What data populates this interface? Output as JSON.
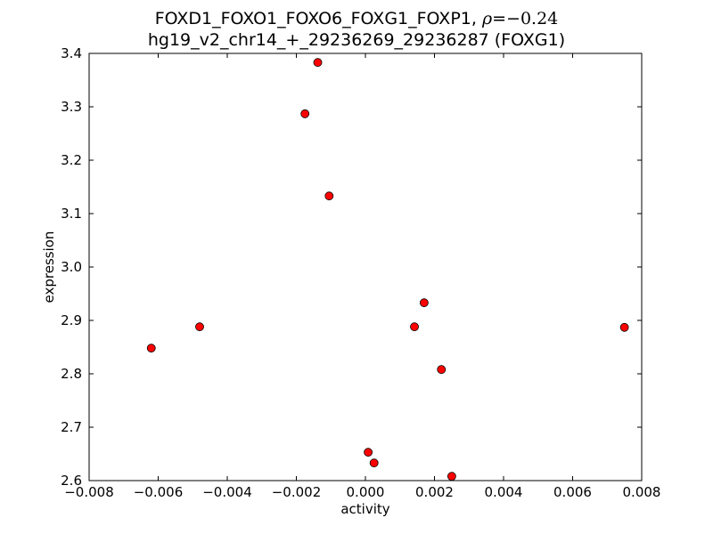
{
  "chart_data": {
    "type": "scatter",
    "title": "FOXD1_FOXO1_FOXO6_FOXG1_FOXP1,",
    "title_rho_symbol": "ρ",
    "title_rho_value": "=−0.24",
    "subtitle": "hg19_v2_chr14_+_29236269_29236287 (FOXG1)",
    "xlabel": "activity",
    "ylabel": "expression",
    "xlim": [
      -0.008,
      0.008
    ],
    "ylim": [
      2.6,
      3.4
    ],
    "xticks": [
      -0.008,
      -0.006,
      -0.004,
      -0.002,
      0.0,
      0.002,
      0.004,
      0.006,
      0.008
    ],
    "xtick_labels": [
      "−0.008",
      "−0.006",
      "−0.004",
      "−0.002",
      "0.000",
      "0.002",
      "0.004",
      "0.006",
      "0.008"
    ],
    "yticks": [
      2.6,
      2.7,
      2.8,
      2.9,
      3.0,
      3.1,
      3.2,
      3.3,
      3.4
    ],
    "ytick_labels": [
      "2.6",
      "2.7",
      "2.8",
      "2.9",
      "3.0",
      "3.1",
      "3.2",
      "3.3",
      "3.4"
    ],
    "grid": false,
    "marker_color": "#ff0000",
    "marker_edge_color": "#000000",
    "points": [
      {
        "x": -0.0062,
        "y": 2.848
      },
      {
        "x": -0.0048,
        "y": 2.888
      },
      {
        "x": -0.00175,
        "y": 3.287
      },
      {
        "x": -0.00138,
        "y": 3.383
      },
      {
        "x": -0.00105,
        "y": 3.133
      },
      {
        "x": 8e-05,
        "y": 2.653
      },
      {
        "x": 0.00025,
        "y": 2.633
      },
      {
        "x": 0.00142,
        "y": 2.888
      },
      {
        "x": 0.0017,
        "y": 2.933
      },
      {
        "x": 0.0022,
        "y": 2.808
      },
      {
        "x": 0.0025,
        "y": 2.608
      },
      {
        "x": 0.0075,
        "y": 2.887
      }
    ]
  }
}
